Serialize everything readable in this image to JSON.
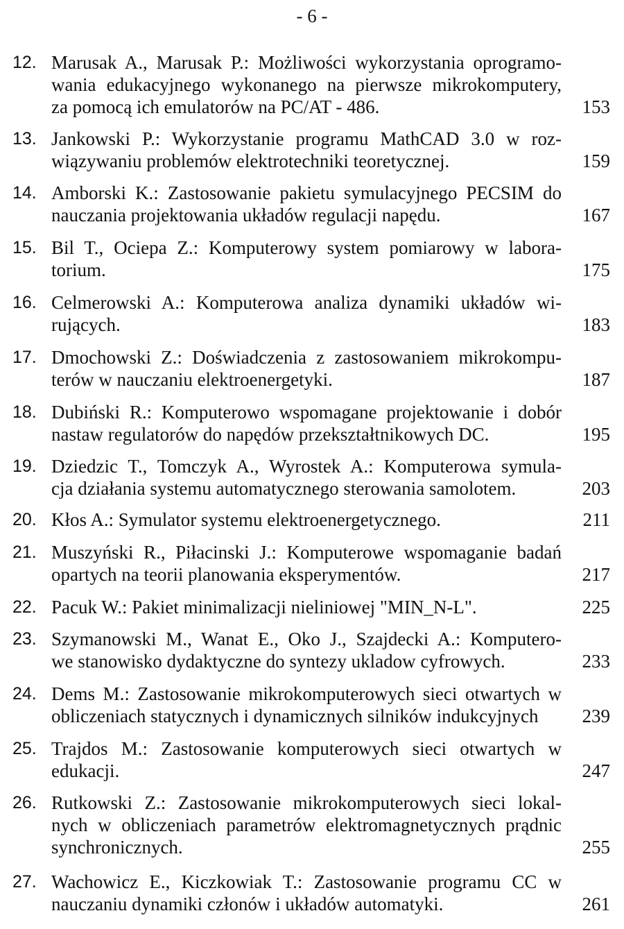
{
  "header": {
    "page_number": "- 6 -"
  },
  "entries": [
    {
      "number": "12.",
      "lines": [
        "Marusak A., Marusak P.: Możliwości wykorzystania oprogramo-",
        "wania edukacyjnego wykonanego na pierwsze mikrokomputery,",
        "za pomocą ich emulatorów na PC/AT - 486."
      ],
      "page": "153"
    },
    {
      "number": "13.",
      "lines": [
        "Jankowski P.: Wykorzystanie programu MathCAD 3.0 w roz-",
        "wiązywaniu problemów elektrotechniki teoretycznej."
      ],
      "page": "159"
    },
    {
      "number": "14.",
      "lines": [
        "Amborski K.: Zastosowanie pakietu symulacyjnego PECSIM do",
        "nauczania projektowania układów regulacji napędu."
      ],
      "page": "167"
    },
    {
      "number": "15.",
      "lines": [
        " Bil T., Ociepa Z.: Komputerowy system pomiarowy w labora-",
        "torium."
      ],
      "page": "175"
    },
    {
      "number": "16.",
      "lines": [
        "Celmerowski A.: Komputerowa analiza dynamiki układów wi-",
        "rujących."
      ],
      "page": "183"
    },
    {
      "number": "17.",
      "lines": [
        "Dmochowski Z.: Doświadczenia z zastosowaniem mikrokompu-",
        "terów w nauczaniu elektroenergetyki."
      ],
      "page": "187"
    },
    {
      "number": "18.",
      "lines": [
        "Dubiński R.: Komputerowo wspomagane projektowanie i dobór",
        "nastaw regulatorów do napędów przekształtnikowych DC."
      ],
      "page": "195"
    },
    {
      "number": "19.",
      "lines": [
        "Dziedzic T., Tomczyk A., Wyrostek A.: Komputerowa symula-",
        "cja działania systemu automatycznego sterowania samolotem."
      ],
      "page": "203"
    },
    {
      "number": "20.",
      "lines": [
        "Kłos A.: Symulator systemu elektroenergetycznego."
      ],
      "page": "211"
    },
    {
      "number": "21.",
      "lines": [
        "Muszyński R., Piłacinski J.: Komputerowe wspomaganie badań",
        "opartych na teorii planowania eksperymentów."
      ],
      "page": "217"
    },
    {
      "number": "22.",
      "lines": [
        "Pacuk W.: Pakiet minimalizacji nieliniowej \"MIN_N-L\"."
      ],
      "page": "225"
    },
    {
      "number": "23.",
      "lines": [
        "Szymanowski M., Wanat E., Oko J., Szajdecki A.: Komputero-",
        "we stanowisko dydaktyczne do syntezy ukladow cyfrowych."
      ],
      "page": "233"
    },
    {
      "number": "24.",
      "lines": [
        "Dems M.: Zastosowanie mikrokomputerowych sieci otwartych w",
        "obliczeniach statycznych i dynamicznych silników indukcyjnych"
      ],
      "page": "239"
    },
    {
      "number": "25.",
      "lines": [
        "Trajdos M.: Zastosowanie komputerowych sieci otwartych w",
        "edukacji."
      ],
      "page": "247"
    },
    {
      "number": "26.",
      "lines": [
        "Rutkowski Z.: Zastosowanie mikrokomputerowych sieci lokal-",
        "nych w obliczeniach parametrów elektromagnetycznych prądnic",
        "synchronicznych."
      ],
      "page": "255"
    },
    {
      "number": "27.",
      "lines": [
        "Wachowicz E., Kiczkowiak T.: Zastosowanie programu CC w",
        "nauczaniu dynamiki członów i układów automatyki."
      ],
      "page": "261"
    }
  ]
}
